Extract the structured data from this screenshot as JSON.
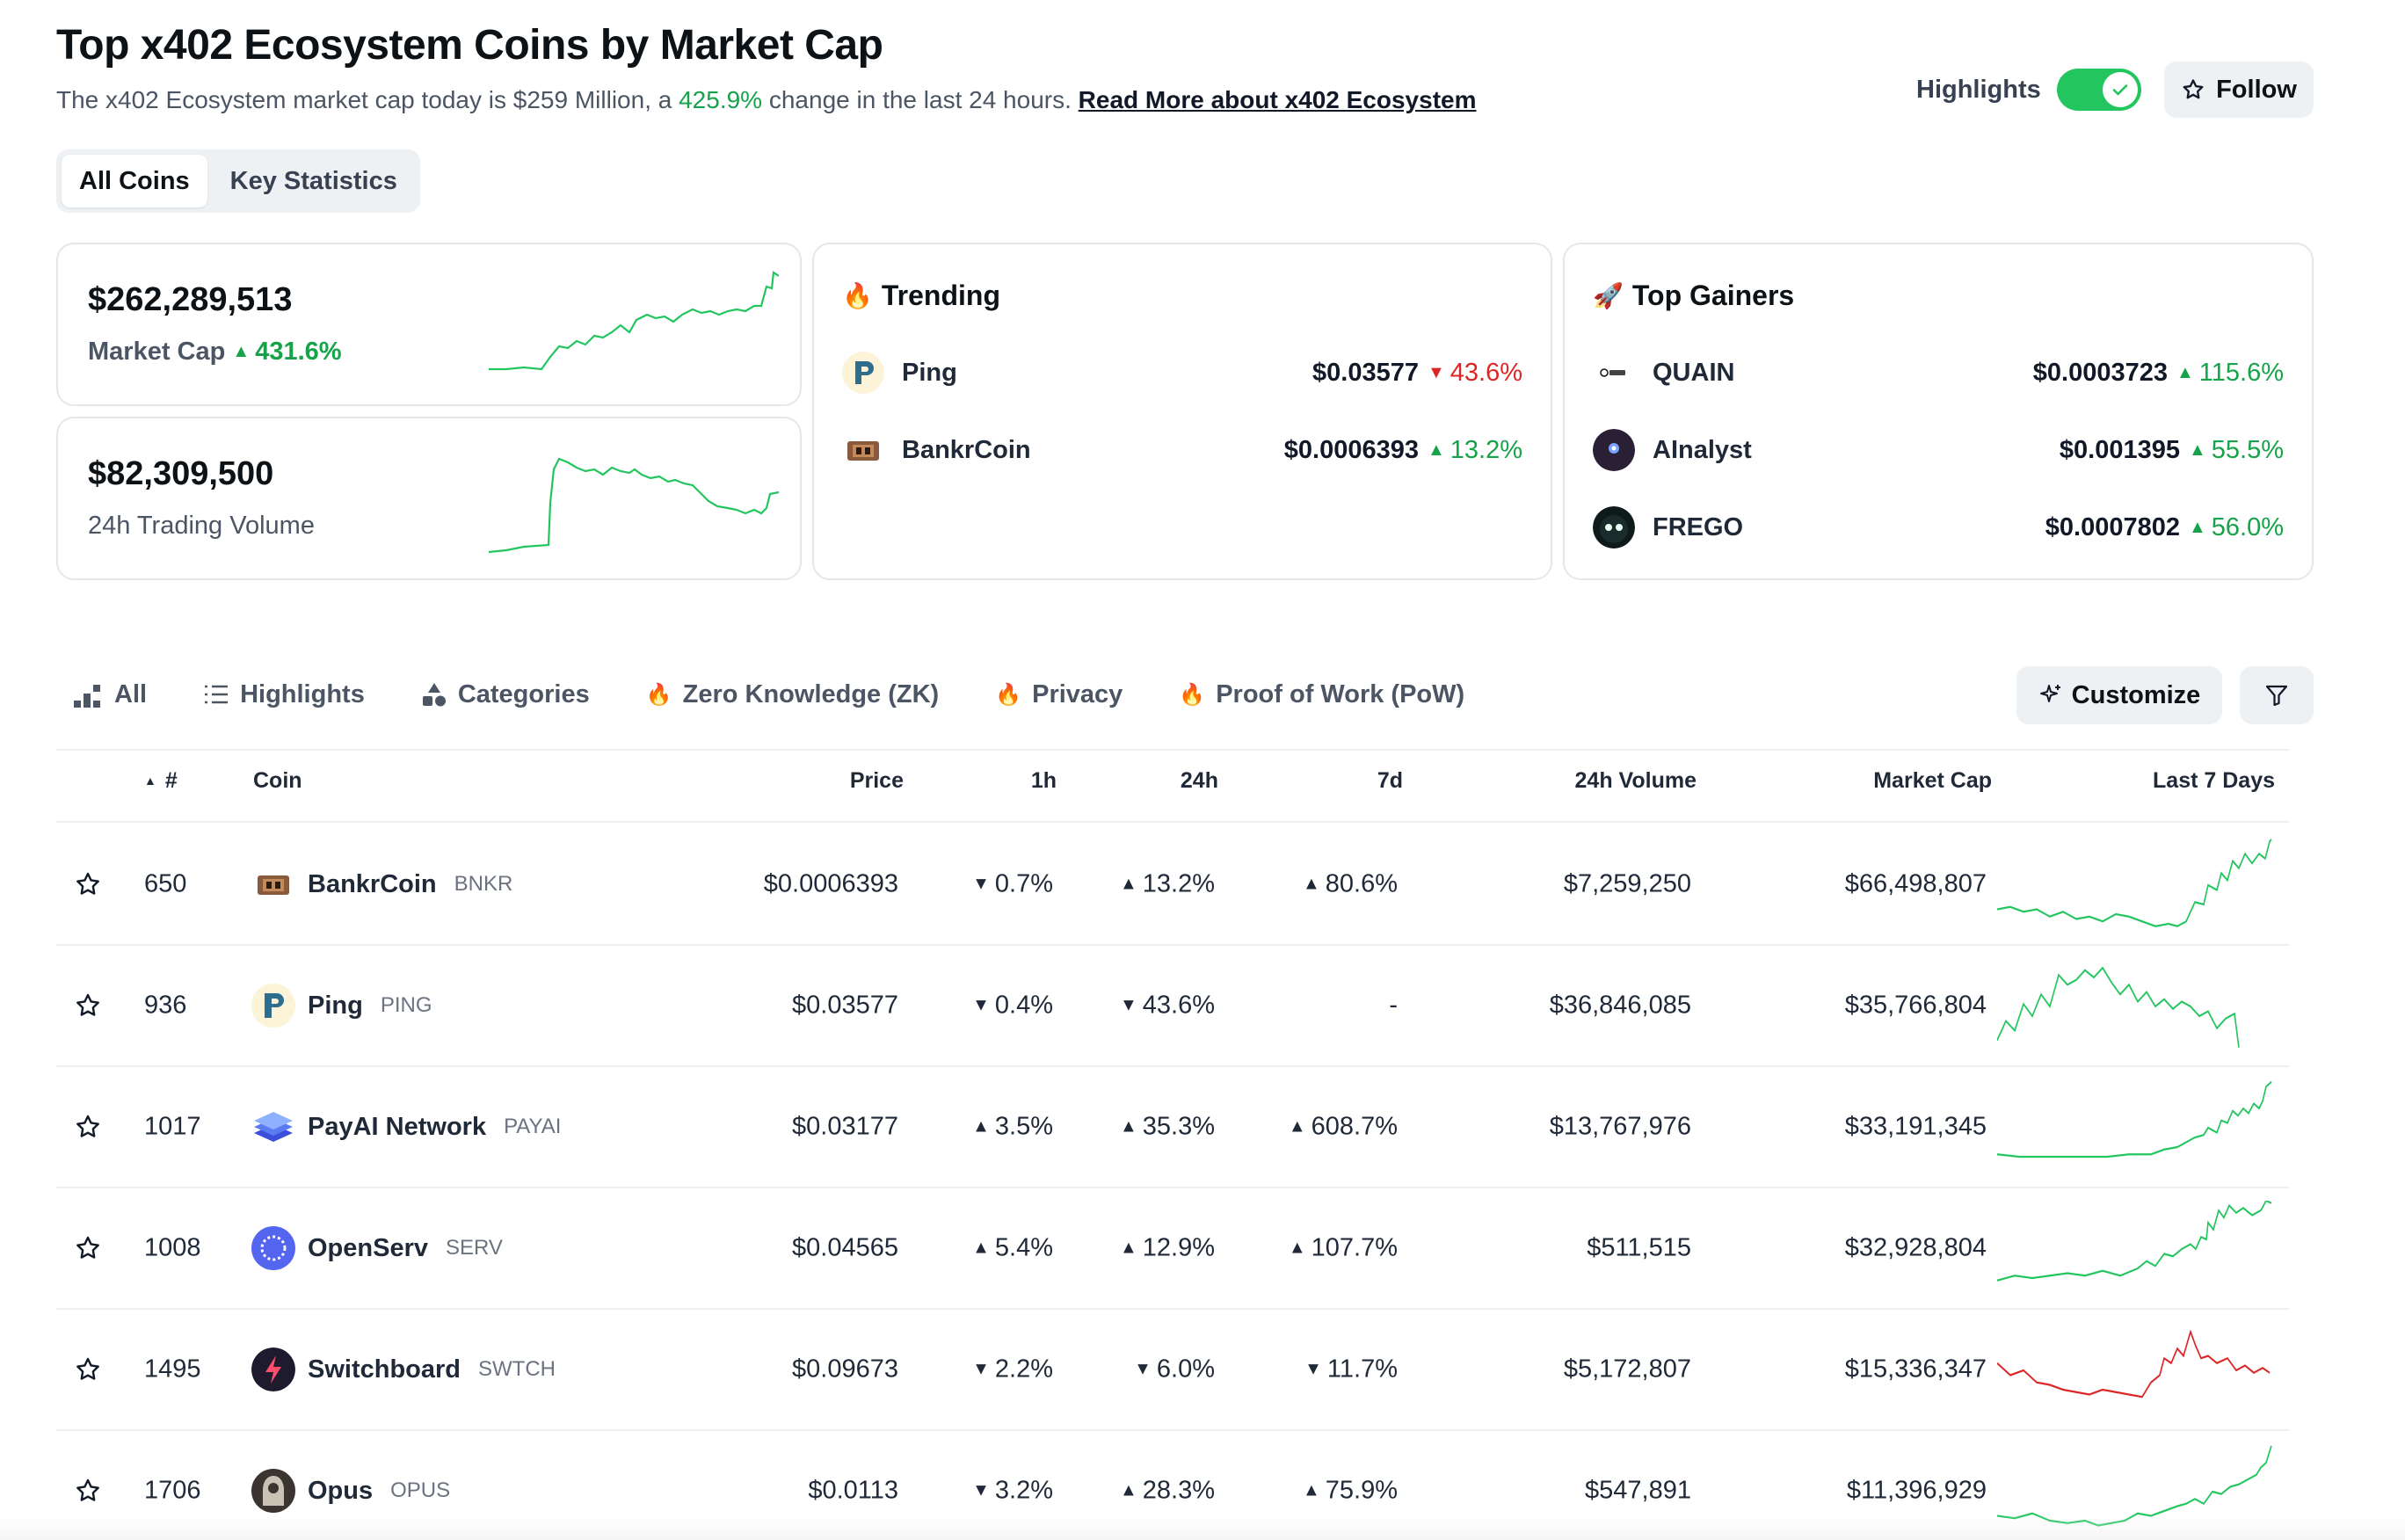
{
  "header": {
    "title": "Top x402 Ecosystem Coins by Market Cap",
    "subtitle_pre": "The x402 Ecosystem market cap today is $259 Million, a",
    "subtitle_change": "425.9%",
    "subtitle_post": "change in the last 24 hours.",
    "read_more": "Read More about x402 Ecosystem",
    "highlights_label": "Highlights",
    "follow_label": "Follow"
  },
  "tabs": [
    {
      "label": "All Coins",
      "active": true
    },
    {
      "label": "Key Statistics",
      "active": false
    }
  ],
  "stats": {
    "market_cap_value": "$262,289,513",
    "market_cap_label": "Market Cap",
    "market_cap_change": "431.6%",
    "volume_value": "$82,309,500",
    "volume_label": "24h Trading Volume"
  },
  "trending": {
    "title": "Trending",
    "items": [
      {
        "name": "Ping",
        "price": "$0.03577",
        "change": "43.6%",
        "dir": "down"
      },
      {
        "name": "BankrCoin",
        "price": "$0.0006393",
        "change": "13.2%",
        "dir": "up"
      }
    ]
  },
  "gainers": {
    "title": "Top Gainers",
    "items": [
      {
        "name": "QUAIN",
        "price": "$0.0003723",
        "change": "115.6%",
        "dir": "up"
      },
      {
        "name": "AInalyst",
        "price": "$0.001395",
        "change": "55.5%",
        "dir": "up"
      },
      {
        "name": "FREGO",
        "price": "$0.0007802",
        "change": "56.0%",
        "dir": "up"
      }
    ]
  },
  "filters": [
    {
      "label": "All",
      "icon": "bar-chart-icon"
    },
    {
      "label": "Highlights",
      "icon": "list-icon"
    },
    {
      "label": "Categories",
      "icon": "shapes-icon"
    },
    {
      "label": "Zero Knowledge (ZK)",
      "icon": "fire-icon"
    },
    {
      "label": "Privacy",
      "icon": "fire-icon"
    },
    {
      "label": "Proof of Work (PoW)",
      "icon": "fire-icon"
    }
  ],
  "customize_label": "Customize",
  "table": {
    "headers": {
      "rank": "#",
      "coin": "Coin",
      "price": "Price",
      "h1": "1h",
      "h24": "24h",
      "d7": "7d",
      "volume": "24h Volume",
      "mcap": "Market Cap",
      "last7": "Last 7 Days"
    },
    "rows": [
      {
        "rank": "650",
        "name": "BankrCoin",
        "symbol": "BNKR",
        "price": "$0.0006393",
        "h1": "0.7%",
        "h1_dir": "down",
        "h24": "13.2%",
        "h24_dir": "up",
        "d7": "80.6%",
        "d7_dir": "up",
        "volume": "$7,259,250",
        "mcap": "$66,498,807",
        "spark_color": "#22c55e"
      },
      {
        "rank": "936",
        "name": "Ping",
        "symbol": "PING",
        "price": "$0.03577",
        "h1": "0.4%",
        "h1_dir": "down",
        "h24": "43.6%",
        "h24_dir": "down",
        "d7": "-",
        "d7_dir": "none",
        "volume": "$36,846,085",
        "mcap": "$35,766,804",
        "spark_color": "#22c55e"
      },
      {
        "rank": "1017",
        "name": "PayAI Network",
        "symbol": "PAYAI",
        "price": "$0.03177",
        "h1": "3.5%",
        "h1_dir": "up",
        "h24": "35.3%",
        "h24_dir": "up",
        "d7": "608.7%",
        "d7_dir": "up",
        "volume": "$13,767,976",
        "mcap": "$33,191,345",
        "spark_color": "#22c55e"
      },
      {
        "rank": "1008",
        "name": "OpenServ",
        "symbol": "SERV",
        "price": "$0.04565",
        "h1": "5.4%",
        "h1_dir": "up",
        "h24": "12.9%",
        "h24_dir": "up",
        "d7": "107.7%",
        "d7_dir": "up",
        "volume": "$511,515",
        "mcap": "$32,928,804",
        "spark_color": "#22c55e"
      },
      {
        "rank": "1495",
        "name": "Switchboard",
        "symbol": "SWTCH",
        "price": "$0.09673",
        "h1": "2.2%",
        "h1_dir": "down",
        "h24": "6.0%",
        "h24_dir": "down",
        "d7": "11.7%",
        "d7_dir": "down",
        "volume": "$5,172,807",
        "mcap": "$15,336,347",
        "spark_color": "#dc2626"
      },
      {
        "rank": "1706",
        "name": "Opus",
        "symbol": "OPUS",
        "price": "$0.0113",
        "h1": "3.2%",
        "h1_dir": "down",
        "h24": "28.3%",
        "h24_dir": "up",
        "d7": "75.9%",
        "d7_dir": "up",
        "volume": "$547,891",
        "mcap": "$11,396,929",
        "spark_color": "#22c55e"
      }
    ]
  },
  "colors": {
    "up": "#16a34a",
    "down": "#dc2626",
    "toggle": "#22c55e"
  }
}
